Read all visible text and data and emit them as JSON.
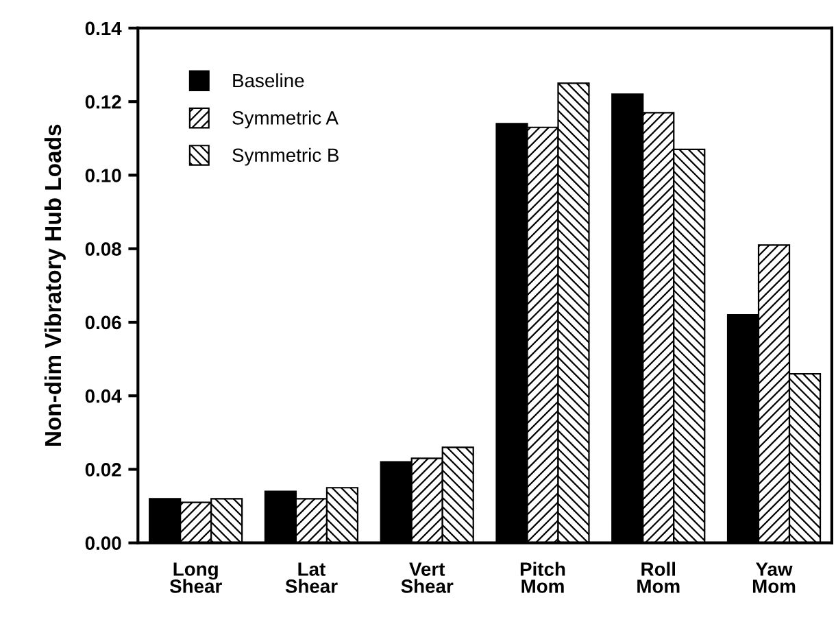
{
  "chart_data": {
    "type": "bar",
    "ylabel": "Non-dim Vibratory Hub Loads",
    "categories": [
      "Long\nShear",
      "Lat\nShear",
      "Vert\nShear",
      "Pitch\nMom",
      "Roll\nMom",
      "Yaw\nMom"
    ],
    "series": [
      {
        "name": "Baseline",
        "color": "#000000",
        "values": [
          0.012,
          0.014,
          0.022,
          0.114,
          0.122,
          0.062
        ]
      },
      {
        "name": "Symmetric A",
        "color": "#000000",
        "values": [
          0.011,
          0.012,
          0.023,
          0.113,
          0.117,
          0.081
        ]
      },
      {
        "name": "Symmetric B",
        "color": "#000000",
        "values": [
          0.012,
          0.015,
          0.026,
          0.125,
          0.107,
          0.046
        ]
      }
    ],
    "ylim": [
      0,
      0.14
    ],
    "yticks": [
      {
        "value": 0,
        "label": "0.00"
      },
      {
        "value": 0.02,
        "label": "0.02"
      },
      {
        "value": 0.04,
        "label": "0.04"
      },
      {
        "value": 0.06,
        "label": "0.06"
      },
      {
        "value": 0.08,
        "label": "0.08"
      },
      {
        "value": 0.1,
        "label": "0.10"
      },
      {
        "value": 0.12,
        "label": "0.12"
      },
      {
        "value": 0.14,
        "label": "0.14"
      }
    ],
    "grid": false,
    "legend": "top left"
  }
}
